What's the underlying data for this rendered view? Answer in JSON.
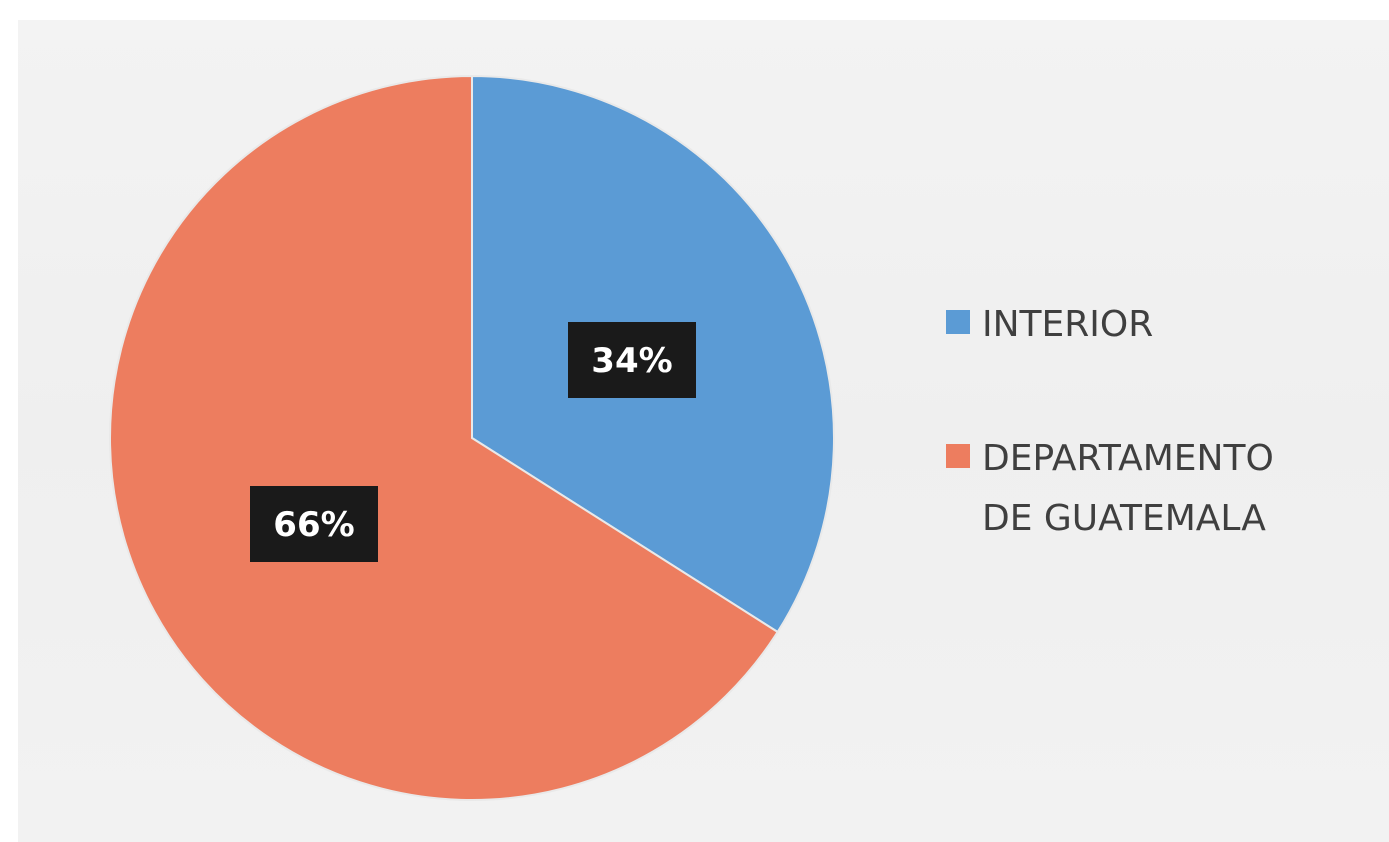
{
  "chart_data": {
    "type": "pie",
    "categories": [
      "INTERIOR",
      "DEPARTAMENTO DE GUATEMALA"
    ],
    "values": [
      34,
      66
    ],
    "value_labels": [
      "34%",
      "66%"
    ],
    "legend": {
      "placement": "right",
      "entries": [
        {
          "lines": [
            "INTERIOR"
          ]
        },
        {
          "lines": [
            "DEPARTAMENTO",
            "DE GUATEMALA"
          ]
        }
      ]
    },
    "colors": [
      "#5B9BD5",
      "#ED7D5F"
    ],
    "start_angle_deg": 0,
    "direction": "clockwise"
  }
}
